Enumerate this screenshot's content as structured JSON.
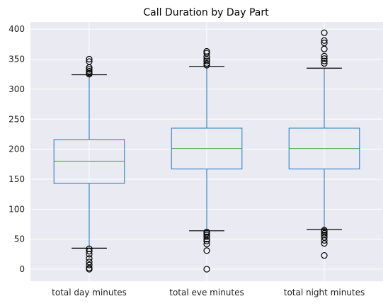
{
  "chart_data": {
    "type": "box",
    "title": "Call Duration by Day Part",
    "xlabel": "",
    "ylabel": "",
    "ylim": [
      -20,
      412
    ],
    "yticks": [
      0,
      50,
      100,
      150,
      200,
      250,
      300,
      350,
      400
    ],
    "grid": true,
    "colors": {
      "background": "#eaeaf2",
      "grid": "#ffffff",
      "box": "#1f77b4",
      "median": "#2ca02c",
      "flier": "#000000",
      "cap": "#000000"
    },
    "boxes": [
      {
        "label": "total day minutes",
        "whisker_low": 35,
        "q1": 143,
        "median": 180,
        "q3": 216,
        "whisker_high": 324,
        "fliers": [
          0,
          2,
          7,
          12,
          18,
          25,
          30,
          34,
          325,
          327,
          330,
          333,
          336,
          346,
          350
        ]
      },
      {
        "label": "total eve minutes",
        "whisker_low": 64,
        "q1": 167,
        "median": 201,
        "q3": 235,
        "whisker_high": 338,
        "fliers": [
          0,
          31,
          42,
          47,
          50,
          54,
          57,
          60,
          62,
          340,
          343,
          347,
          350,
          354,
          360,
          363
        ]
      },
      {
        "label": "total night minutes",
        "whisker_low": 66,
        "q1": 167,
        "median": 201,
        "q3": 235,
        "whisker_high": 335,
        "fliers": [
          23,
          43,
          48,
          53,
          57,
          60,
          63,
          65,
          343,
          347,
          351,
          355,
          367,
          377,
          381,
          394
        ]
      }
    ]
  }
}
